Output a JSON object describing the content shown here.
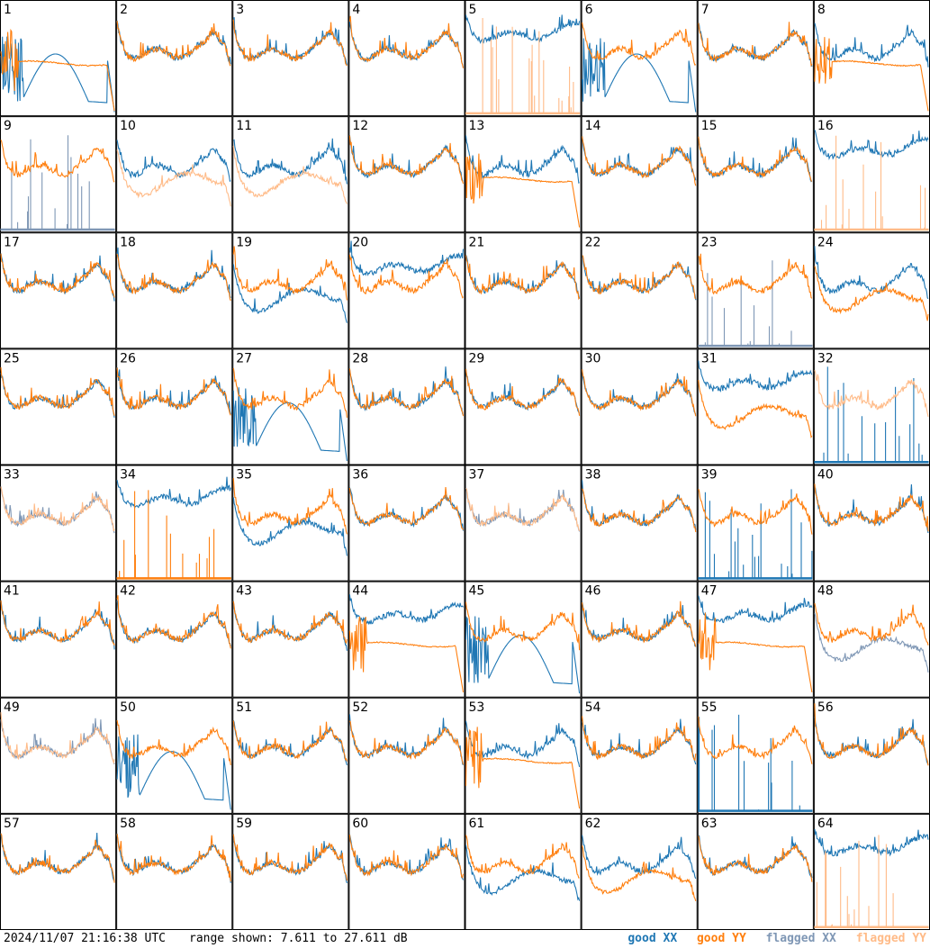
{
  "footer": {
    "timestamp": "2024/11/07 21:16:38 UTC",
    "range": "range shown: 7.611 to 27.611 dB",
    "legend_good_xx": "good XX",
    "legend_good_yy": "good YY",
    "legend_flagged_xx": "flagged XX",
    "legend_flagged_yy": "flagged YY"
  },
  "colors": {
    "good_xx": "#1f77b4",
    "good_yy": "#ff7f0e",
    "flagged_xx": "#7f97b5",
    "flagged_yy": "#ffbb88"
  },
  "chart_data": {
    "type": "line",
    "layout": "8x8 small multiples",
    "ylim": [
      7.611,
      27.611
    ],
    "yunit": "dB",
    "panels": [
      {
        "id": "1",
        "xx": "bad1",
        "yy": "ripple",
        "xxf": false,
        "yyf": false
      },
      {
        "id": "2",
        "xx": "normal",
        "yy": "normal",
        "xxf": false,
        "yyf": false
      },
      {
        "id": "3",
        "xx": "normal",
        "yy": "normal",
        "xxf": false,
        "yyf": false
      },
      {
        "id": "4",
        "xx": "normal",
        "yy": "normal",
        "xxf": false,
        "yyf": false
      },
      {
        "id": "5",
        "xx": "high",
        "yy": "spikes",
        "xxf": false,
        "yyf": true
      },
      {
        "id": "6",
        "xx": "bad1",
        "yy": "normal",
        "xxf": false,
        "yyf": false
      },
      {
        "id": "7",
        "xx": "normal",
        "yy": "normal",
        "xxf": false,
        "yyf": false
      },
      {
        "id": "8",
        "xx": "normal",
        "yy": "ripple",
        "xxf": false,
        "yyf": false
      },
      {
        "id": "9",
        "xx": "spikes",
        "yy": "normal",
        "xxf": true,
        "yyf": false
      },
      {
        "id": "10",
        "xx": "normal",
        "yy": "low",
        "xxf": false,
        "yyf": true
      },
      {
        "id": "11",
        "xx": "normal",
        "yy": "low",
        "xxf": false,
        "yyf": true
      },
      {
        "id": "12",
        "xx": "normal",
        "yy": "normal",
        "xxf": false,
        "yyf": false
      },
      {
        "id": "13",
        "xx": "normal",
        "yy": "ripple",
        "xxf": false,
        "yyf": false
      },
      {
        "id": "14",
        "xx": "normal",
        "yy": "normal",
        "xxf": false,
        "yyf": false
      },
      {
        "id": "15",
        "xx": "normal",
        "yy": "normal",
        "xxf": false,
        "yyf": false
      },
      {
        "id": "16",
        "xx": "high",
        "yy": "spikes",
        "xxf": false,
        "yyf": true
      },
      {
        "id": "17",
        "xx": "normal",
        "yy": "normal",
        "xxf": false,
        "yyf": false
      },
      {
        "id": "18",
        "xx": "normal",
        "yy": "normal",
        "xxf": false,
        "yyf": false
      },
      {
        "id": "19",
        "xx": "low",
        "yy": "normal",
        "xxf": false,
        "yyf": false
      },
      {
        "id": "20",
        "xx": "high",
        "yy": "normal",
        "xxf": false,
        "yyf": false
      },
      {
        "id": "21",
        "xx": "normal",
        "yy": "normal",
        "xxf": false,
        "yyf": false
      },
      {
        "id": "22",
        "xx": "normal",
        "yy": "normal",
        "xxf": false,
        "yyf": false
      },
      {
        "id": "23",
        "xx": "spikes",
        "yy": "normal",
        "xxf": true,
        "yyf": false
      },
      {
        "id": "24",
        "xx": "normal",
        "yy": "low",
        "xxf": false,
        "yyf": false
      },
      {
        "id": "25",
        "xx": "normal",
        "yy": "normal",
        "xxf": false,
        "yyf": false
      },
      {
        "id": "26",
        "xx": "normal",
        "yy": "normal",
        "xxf": false,
        "yyf": false
      },
      {
        "id": "27",
        "xx": "bad1",
        "yy": "normal",
        "xxf": false,
        "yyf": false
      },
      {
        "id": "28",
        "xx": "normal",
        "yy": "normal",
        "xxf": false,
        "yyf": false
      },
      {
        "id": "29",
        "xx": "normal",
        "yy": "normal",
        "xxf": false,
        "yyf": false
      },
      {
        "id": "30",
        "xx": "normal",
        "yy": "normal",
        "xxf": false,
        "yyf": false
      },
      {
        "id": "31",
        "xx": "high",
        "yy": "low",
        "xxf": false,
        "yyf": false
      },
      {
        "id": "32",
        "xx": "spikes",
        "yy": "normal",
        "xxf": false,
        "yyf": true
      },
      {
        "id": "33",
        "xx": "normal",
        "yy": "normal",
        "xxf": true,
        "yyf": true
      },
      {
        "id": "34",
        "xx": "high",
        "yy": "spikes",
        "xxf": false,
        "yyf": false
      },
      {
        "id": "35",
        "xx": "low",
        "yy": "normal",
        "xxf": false,
        "yyf": false
      },
      {
        "id": "36",
        "xx": "normal",
        "yy": "normal",
        "xxf": false,
        "yyf": false
      },
      {
        "id": "37",
        "xx": "normal",
        "yy": "normal",
        "xxf": true,
        "yyf": true
      },
      {
        "id": "38",
        "xx": "normal",
        "yy": "normal",
        "xxf": false,
        "yyf": false
      },
      {
        "id": "39",
        "xx": "spikes",
        "yy": "normal",
        "xxf": false,
        "yyf": false
      },
      {
        "id": "40",
        "xx": "normal",
        "yy": "normal",
        "xxf": false,
        "yyf": false
      },
      {
        "id": "41",
        "xx": "normal",
        "yy": "normal",
        "xxf": false,
        "yyf": false
      },
      {
        "id": "42",
        "xx": "normal",
        "yy": "normal",
        "xxf": false,
        "yyf": false
      },
      {
        "id": "43",
        "xx": "normal",
        "yy": "normal",
        "xxf": false,
        "yyf": false
      },
      {
        "id": "44",
        "xx": "high",
        "yy": "ripple",
        "xxf": false,
        "yyf": false
      },
      {
        "id": "45",
        "xx": "bad1",
        "yy": "normal",
        "xxf": false,
        "yyf": false
      },
      {
        "id": "46",
        "xx": "normal",
        "yy": "normal",
        "xxf": false,
        "yyf": false
      },
      {
        "id": "47",
        "xx": "high",
        "yy": "ripple",
        "xxf": false,
        "yyf": false
      },
      {
        "id": "48",
        "xx": "low",
        "yy": "normal",
        "xxf": true,
        "yyf": false
      },
      {
        "id": "49",
        "xx": "normal",
        "yy": "normal",
        "xxf": true,
        "yyf": true
      },
      {
        "id": "50",
        "xx": "bad1",
        "yy": "normal",
        "xxf": false,
        "yyf": false
      },
      {
        "id": "51",
        "xx": "normal",
        "yy": "normal",
        "xxf": false,
        "yyf": false
      },
      {
        "id": "52",
        "xx": "normal",
        "yy": "normal",
        "xxf": false,
        "yyf": false
      },
      {
        "id": "53",
        "xx": "normal",
        "yy": "ripple",
        "xxf": false,
        "yyf": false
      },
      {
        "id": "54",
        "xx": "normal",
        "yy": "normal",
        "xxf": false,
        "yyf": false
      },
      {
        "id": "55",
        "xx": "spikes",
        "yy": "normal",
        "xxf": false,
        "yyf": false
      },
      {
        "id": "56",
        "xx": "normal",
        "yy": "normal",
        "xxf": false,
        "yyf": false
      },
      {
        "id": "57",
        "xx": "normal",
        "yy": "normal",
        "xxf": false,
        "yyf": false
      },
      {
        "id": "58",
        "xx": "normal",
        "yy": "normal",
        "xxf": false,
        "yyf": false
      },
      {
        "id": "59",
        "xx": "normal",
        "yy": "normal",
        "xxf": false,
        "yyf": false
      },
      {
        "id": "60",
        "xx": "normal",
        "yy": "normal",
        "xxf": false,
        "yyf": false
      },
      {
        "id": "61",
        "xx": "low",
        "yy": "normal",
        "xxf": false,
        "yyf": false
      },
      {
        "id": "62",
        "xx": "normal",
        "yy": "low",
        "xxf": false,
        "yyf": false
      },
      {
        "id": "63",
        "xx": "normal",
        "yy": "normal",
        "xxf": false,
        "yyf": false
      },
      {
        "id": "64",
        "xx": "high",
        "yy": "spikes",
        "xxf": false,
        "yyf": true
      }
    ]
  }
}
